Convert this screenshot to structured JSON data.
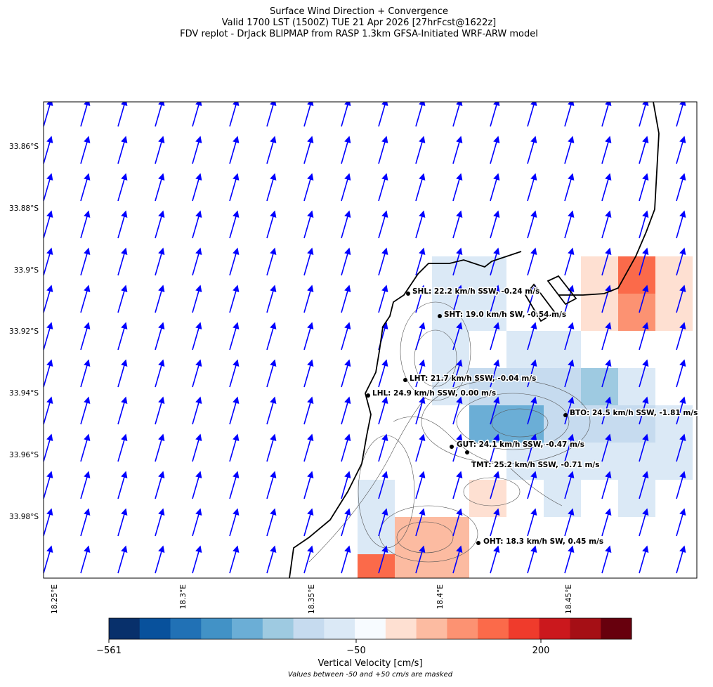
{
  "header": {
    "title_lines": [
      "Surface Wind Direction + Convergence",
      "Valid 1700 LST (1500Z) TUE 21 Apr 2026 [27hrFcst@1622z]",
      "FDV replot - DrJack BLIPMAP from RASP 1.3km GFSA-Initiated WRF-ARW model"
    ]
  },
  "map": {
    "lat_labels": [
      "33.86°S",
      "33.88°S",
      "33.9°S",
      "33.92°S",
      "33.94°S",
      "33.96°S",
      "33.98°S"
    ],
    "lon_labels": [
      "18.25°E",
      "18.3°E",
      "18.35°E",
      "18.4°E",
      "18.45°E"
    ],
    "stations": [
      {
        "label": "SHL: 22.2 km/h SSW, -0.24 m/s"
      },
      {
        "label": "SHT: 19.0 km/h SW, -0.54 m/s"
      },
      {
        "label": "LHT: 21.7 km/h SSW, -0.04 m/s"
      },
      {
        "label": "LHL: 24.9 km/h SSW, 0.00 m/s"
      },
      {
        "label": "BTO: 24.5 km/h SSW, -1.81 m/s"
      },
      {
        "label": "GUT: 24.1 km/h SSW, -0.47 m/s"
      },
      {
        "label": "TMT: 25.2 km/h SSW, -0.71 m/s"
      },
      {
        "label": "OHT: 18.3 km/h SW, 0.45 m/s"
      }
    ]
  },
  "colorbar": {
    "ticks": [
      "−561",
      "−50",
      "200"
    ],
    "label": "Vertical Velocity [cm/s]",
    "note": "Values between -50 and +50 cm/s are masked"
  }
}
